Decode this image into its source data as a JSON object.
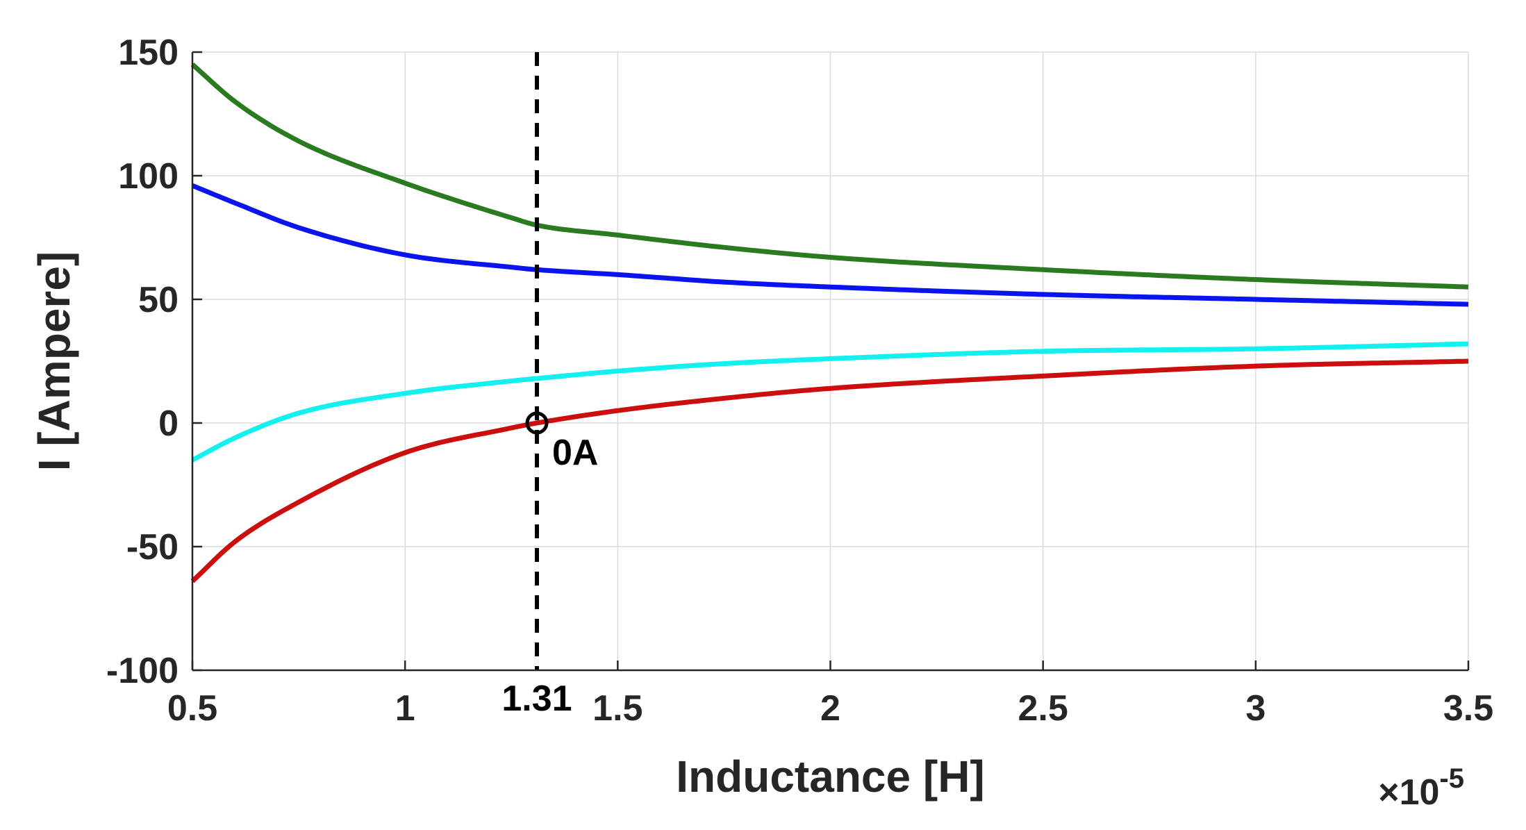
{
  "chart_data": {
    "type": "line",
    "xlabel": "Inductance [H]",
    "ylabel": "I [Ampere]",
    "x_multiplier": "×10",
    "x_multiplier_exponent": "-5",
    "xlim": [
      0.5,
      3.5
    ],
    "ylim": [
      -100,
      150
    ],
    "xticks": [
      0.5,
      1,
      1.5,
      2,
      2.5,
      3,
      3.5
    ],
    "xtick_labels": [
      "0.5",
      "1",
      "1.5",
      "2",
      "2.5",
      "3",
      "3.5"
    ],
    "yticks": [
      -100,
      -50,
      0,
      50,
      100,
      150
    ],
    "ytick_labels": [
      "-100",
      "-50",
      "0",
      "50",
      "100",
      "150"
    ],
    "grid": true,
    "x": [
      0.5,
      0.6,
      0.75,
      1.0,
      1.25,
      1.31,
      1.5,
      1.75,
      2.0,
      2.5,
      3.0,
      3.5
    ],
    "series": [
      {
        "name": "green",
        "color": "#2a7a1f",
        "values": [
          145,
          130,
          114,
          97,
          83,
          80,
          76,
          71,
          67,
          62,
          58,
          55
        ]
      },
      {
        "name": "blue",
        "color": "#0a14ee",
        "values": [
          96,
          89,
          79,
          68,
          63,
          62,
          60,
          57,
          55,
          52,
          50,
          48
        ]
      },
      {
        "name": "cyan",
        "color": "#12f0f0",
        "values": [
          -15,
          -6,
          4,
          12,
          17,
          18,
          21,
          24,
          26,
          29,
          30,
          32
        ]
      },
      {
        "name": "red",
        "color": "#cc0e0e",
        "values": [
          -64,
          -48,
          -32,
          -12,
          -2,
          0,
          5,
          10,
          14,
          19,
          23,
          25
        ]
      }
    ],
    "vline": {
      "x": 1.31,
      "label": "1.31",
      "color": "#000000"
    },
    "marker": {
      "x": 1.31,
      "y": 0,
      "label": "0A",
      "color": "#000000"
    }
  }
}
